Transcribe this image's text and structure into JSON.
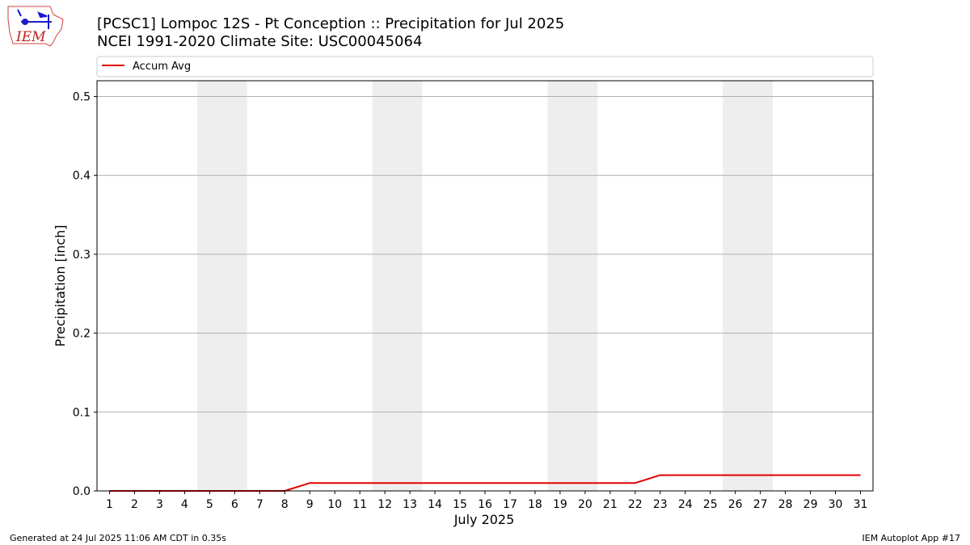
{
  "header": {
    "title_line1": "[PCSC1] Lompoc 12S - Pt Conception :: Precipitation for Jul 2025",
    "title_line2": "NCEI 1991-2020 Climate Site: USC00045064"
  },
  "logo": {
    "text": "IEM"
  },
  "footer": {
    "generated": "Generated at 24 Jul 2025 11:06 AM CDT in 0.35s",
    "app": "IEM Autoplot App #17"
  },
  "chart_data": {
    "type": "line",
    "xlabel": "July 2025",
    "ylabel": "Precipitation [inch]",
    "ylim": [
      0.0,
      0.52
    ],
    "yticks": [
      0.0,
      0.1,
      0.2,
      0.3,
      0.4,
      0.5
    ],
    "ytick_labels": [
      "0.0",
      "0.1",
      "0.2",
      "0.3",
      "0.4",
      "0.5"
    ],
    "xlim": [
      0.5,
      31.5
    ],
    "x": [
      1,
      2,
      3,
      4,
      5,
      6,
      7,
      8,
      9,
      10,
      11,
      12,
      13,
      14,
      15,
      16,
      17,
      18,
      19,
      20,
      21,
      22,
      23,
      24,
      25,
      26,
      27,
      28,
      29,
      30,
      31
    ],
    "x_labels": [
      "1",
      "2",
      "3",
      "4",
      "5",
      "6",
      "7",
      "8",
      "9",
      "10",
      "11",
      "12",
      "13",
      "14",
      "15",
      "16",
      "17",
      "18",
      "19",
      "20",
      "21",
      "22",
      "23",
      "24",
      "25",
      "26",
      "27",
      "28",
      "29",
      "30",
      "31"
    ],
    "weekend_bands": [
      [
        4.5,
        6.5
      ],
      [
        11.5,
        13.5
      ],
      [
        18.5,
        20.5
      ],
      [
        25.5,
        27.5
      ]
    ],
    "grid": "horizontal",
    "legend": "top",
    "series": [
      {
        "name": "Accum Avg",
        "color": "#e00000",
        "values": [
          0,
          0,
          0,
          0,
          0,
          0,
          0,
          0,
          0.01,
          0.01,
          0.01,
          0.01,
          0.01,
          0.01,
          0.01,
          0.01,
          0.01,
          0.01,
          0.01,
          0.01,
          0.01,
          0.01,
          0.02,
          0.02,
          0.02,
          0.02,
          0.02,
          0.02,
          0.02,
          0.02,
          0.02
        ]
      }
    ]
  }
}
